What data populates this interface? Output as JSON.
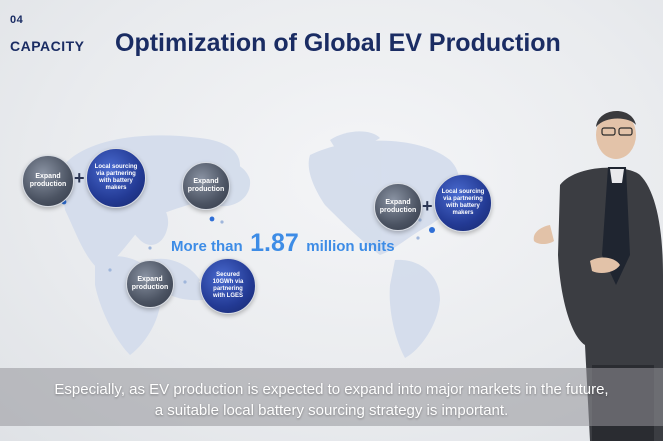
{
  "header": {
    "section_number": "04",
    "section_label": "CAPACITY",
    "title": "Optimization of Global EV Production"
  },
  "map": {
    "bubbles": {
      "europe_expand": "Expand production",
      "europe_local": "Local sourcing via partnering with battery makers",
      "asia_expand": "Expand production",
      "india_expand": "Expand production",
      "secured": "Secured 10GWh via partnering with LGES",
      "us_expand": "Expand production",
      "us_local": "Local sourcing via partnering with battery makers"
    },
    "plus_sign": "+",
    "headline": {
      "prefix": "More than",
      "number": "1.87",
      "suffix": "million units"
    }
  },
  "subtitles": {
    "line1": "Especially, as EV production is expected to expand into major markets in the future,",
    "line2": "a suitable local battery sourcing strategy is important."
  },
  "colors": {
    "title_navy": "#1a2c63",
    "accent_blue": "#3d8ce6",
    "bubble_gray": "#4b5362",
    "bubble_navy": "#233a94"
  }
}
